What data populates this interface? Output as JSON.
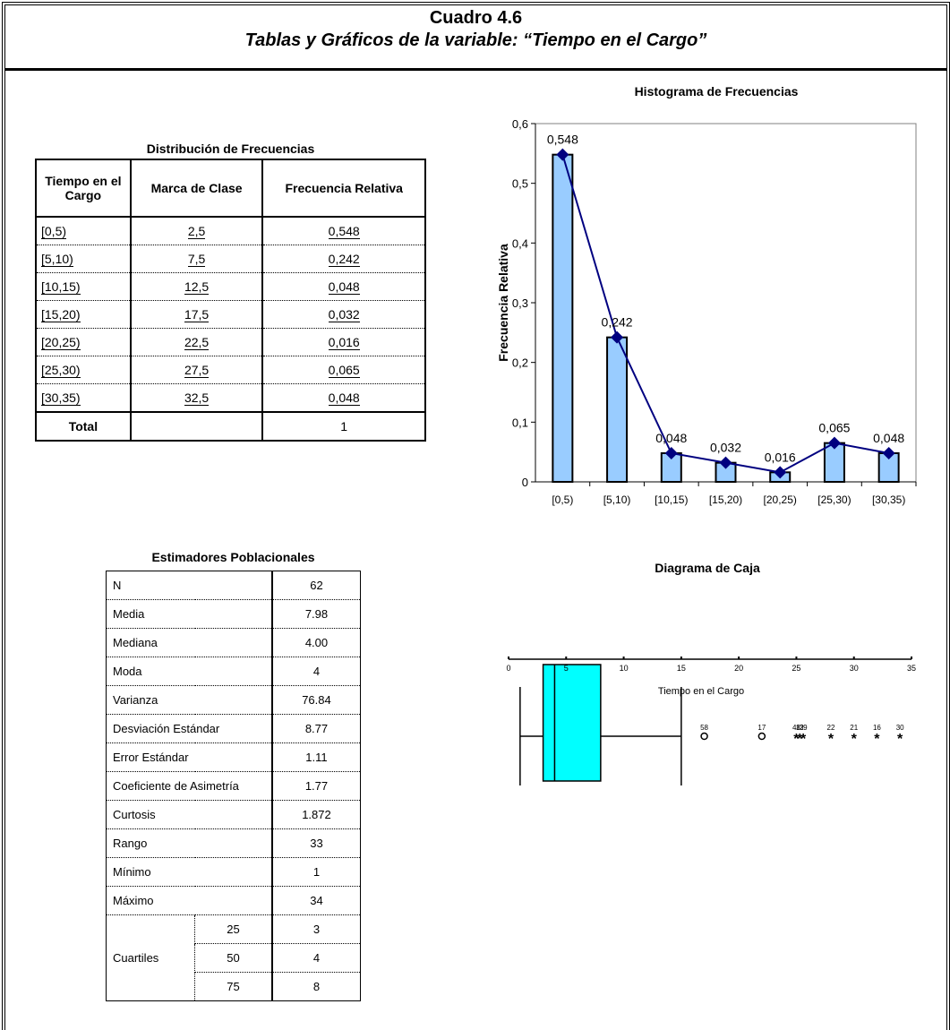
{
  "header": {
    "title": "Cuadro 4.6",
    "subtitle": "Tablas y Gráficos de la variable: “Tiempo en el Cargo”"
  },
  "distribution": {
    "caption": "Distribución de Frecuencias",
    "headers": [
      "Tiempo en el Cargo",
      "Marca de Clase",
      "Frecuencia Relativa"
    ],
    "rows": [
      {
        "interval": "[0,5)",
        "mark": "2,5",
        "freq": "0,548"
      },
      {
        "interval": "[5,10)",
        "mark": "7,5",
        "freq": "0,242"
      },
      {
        "interval": "[10,15)",
        "mark": "12,5",
        "freq": "0,048"
      },
      {
        "interval": "[15,20)",
        "mark": "17,5",
        "freq": "0,032"
      },
      {
        "interval": "[20,25)",
        "mark": "22,5",
        "freq": "0,016"
      },
      {
        "interval": "[25,30)",
        "mark": "27,5",
        "freq": "0,065"
      },
      {
        "interval": "[30,35)",
        "mark": "32,5",
        "freq": "0,048"
      }
    ],
    "total_label": "Total",
    "total_value": "1"
  },
  "estimators": {
    "caption": "Estimadores Poblacionales",
    "rows": [
      {
        "label": "N",
        "value": "62"
      },
      {
        "label": "Media",
        "value": "7.98"
      },
      {
        "label": "Mediana",
        "value": "4.00"
      },
      {
        "label": "Moda",
        "value": "4"
      },
      {
        "label": "Varianza",
        "value": "76.84"
      },
      {
        "label": "Desviación Estándar",
        "value": "8.77"
      },
      {
        "label": "Error Estándar",
        "value": "1.11"
      },
      {
        "label": "Coeficiente de Asimetría",
        "value": "1.77"
      },
      {
        "label": "Curtosis",
        "value": "1.872"
      },
      {
        "label": "Rango",
        "value": "33"
      },
      {
        "label": "Mínimo",
        "value": "1"
      },
      {
        "label": "Máximo",
        "value": "34"
      }
    ],
    "quartiles_label": "Cuartiles",
    "quartiles": [
      {
        "p": "25",
        "value": "3"
      },
      {
        "p": "50",
        "value": "4"
      },
      {
        "p": "75",
        "value": "8"
      }
    ]
  },
  "chart_data": [
    {
      "type": "bar",
      "title": "Histograma de Frecuencias",
      "ylabel": "Frecuencia Relativa",
      "xlabel": "",
      "categories": [
        "[0,5)",
        "[5,10)",
        "[10,15)",
        "[15,20)",
        "[20,25)",
        "[25,30)",
        "[30,35)"
      ],
      "values": [
        0.548,
        0.242,
        0.048,
        0.032,
        0.016,
        0.065,
        0.048
      ],
      "data_labels": [
        "0,548",
        "0,242",
        "0,048",
        "0,032",
        "0,016",
        "0,065",
        "0,048"
      ],
      "yticks": [
        "0",
        "0,1",
        "0,2",
        "0,3",
        "0,4",
        "0,5",
        "0,6"
      ],
      "ylim": [
        0,
        0.6
      ],
      "bar_color": "#99ccff",
      "line_color": "#000080",
      "overlay": "line-with-diamond-markers"
    },
    {
      "type": "boxplot",
      "title": "Diagrama de Caja",
      "xlabel": "Tiempo en el Cargo",
      "xticks": [
        "0",
        "5",
        "10",
        "15",
        "20",
        "25",
        "30",
        "35"
      ],
      "xlim": [
        0,
        35
      ],
      "whisker_low": 1,
      "q1": 3,
      "median": 4,
      "q3": 8,
      "whisker_high": 15,
      "box_color": "#00ffff",
      "outliers": [
        {
          "label": "58",
          "x": 17,
          "marker": "o"
        },
        {
          "label": "17",
          "x": 22,
          "marker": "o"
        },
        {
          "label": "48",
          "x": 25,
          "marker": "*"
        },
        {
          "label": "12",
          "x": 25.3,
          "marker": "*"
        },
        {
          "label": "39",
          "x": 25.6,
          "marker": "*"
        },
        {
          "label": "22",
          "x": 28,
          "marker": "*"
        },
        {
          "label": "21",
          "x": 30,
          "marker": "*"
        },
        {
          "label": "16",
          "x": 32,
          "marker": "*"
        },
        {
          "label": "30",
          "x": 34,
          "marker": "*"
        }
      ]
    }
  ]
}
